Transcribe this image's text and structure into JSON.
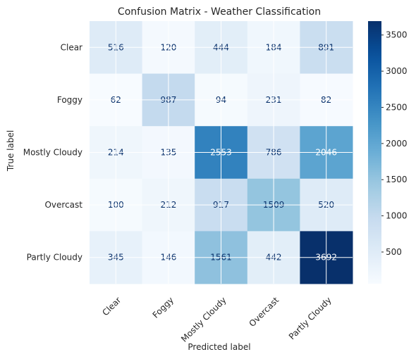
{
  "chart_data": {
    "type": "heatmap",
    "title": "Confusion Matrix - Weather Classification",
    "xlabel": "Predicted label",
    "ylabel": "True label",
    "x_categories": [
      "Clear",
      "Foggy",
      "Mostly Cloudy",
      "Overcast",
      "Partly Cloudy"
    ],
    "y_categories": [
      "Clear",
      "Foggy",
      "Mostly Cloudy",
      "Overcast",
      "Partly Cloudy"
    ],
    "values": [
      [
        516,
        120,
        444,
        184,
        891
      ],
      [
        62,
        987,
        94,
        231,
        82
      ],
      [
        214,
        135,
        2553,
        786,
        2046
      ],
      [
        100,
        212,
        917,
        1509,
        520
      ],
      [
        345,
        146,
        1561,
        442,
        3692
      ]
    ],
    "colormap": "Blues",
    "color_range": [
      62,
      3692
    ],
    "colorbar_ticks": [
      500,
      1000,
      1500,
      2000,
      2500,
      3000,
      3500
    ],
    "grid": true,
    "cell_text_colors": {
      "light_bg": "#08306b",
      "dark_bg": "#ffffff"
    }
  }
}
